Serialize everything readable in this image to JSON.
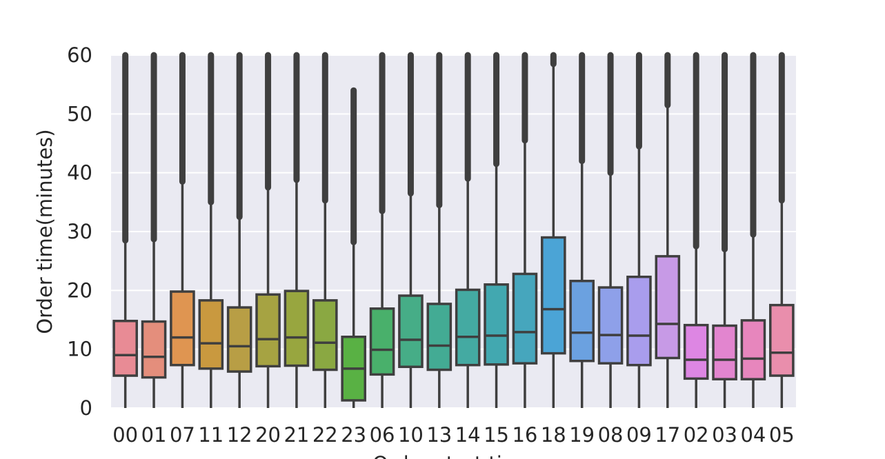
{
  "chart_data": {
    "type": "box",
    "xlabel": "Order start time",
    "ylabel": "Order time(minutes)",
    "ylim": [
      0,
      60
    ],
    "yticks": [
      0,
      10,
      20,
      30,
      40,
      50,
      60
    ],
    "grid": true,
    "categories": [
      "00",
      "01",
      "07",
      "11",
      "12",
      "20",
      "21",
      "22",
      "23",
      "06",
      "10",
      "13",
      "14",
      "15",
      "16",
      "18",
      "19",
      "08",
      "09",
      "17",
      "02",
      "03",
      "04",
      "05"
    ],
    "boxes": [
      {
        "q1": 5.5,
        "median": 9.0,
        "q3": 14.8,
        "whisker_low": 0,
        "whisker_high": 28.5,
        "fliers_low": 28.5,
        "fliers_high": 60
      },
      {
        "q1": 5.2,
        "median": 8.7,
        "q3": 14.7,
        "whisker_low": 0,
        "whisker_high": 28.7,
        "fliers_low": 28.7,
        "fliers_high": 60
      },
      {
        "q1": 7.3,
        "median": 12.0,
        "q3": 19.8,
        "whisker_low": 0,
        "whisker_high": 38.5,
        "fliers_low": 38.5,
        "fliers_high": 60
      },
      {
        "q1": 6.7,
        "median": 11.0,
        "q3": 18.3,
        "whisker_low": 0,
        "whisker_high": 35.0,
        "fliers_low": 35.0,
        "fliers_high": 60
      },
      {
        "q1": 6.2,
        "median": 10.5,
        "q3": 17.1,
        "whisker_low": 0,
        "whisker_high": 32.5,
        "fliers_low": 32.5,
        "fliers_high": 60
      },
      {
        "q1": 7.1,
        "median": 11.7,
        "q3": 19.3,
        "whisker_low": 0,
        "whisker_high": 37.5,
        "fliers_low": 37.5,
        "fliers_high": 60
      },
      {
        "q1": 7.2,
        "median": 12.0,
        "q3": 19.9,
        "whisker_low": 0,
        "whisker_high": 38.8,
        "fliers_low": 38.8,
        "fliers_high": 60
      },
      {
        "q1": 6.5,
        "median": 11.1,
        "q3": 18.3,
        "whisker_low": 0,
        "whisker_high": 35.3,
        "fliers_low": 35.3,
        "fliers_high": 60
      },
      {
        "q1": 1.3,
        "median": 6.7,
        "q3": 12.1,
        "whisker_low": 0,
        "whisker_high": 28.2,
        "fliers_low": 28.2,
        "fliers_high": 54.0
      },
      {
        "q1": 5.7,
        "median": 9.9,
        "q3": 16.9,
        "whisker_low": 0,
        "whisker_high": 33.5,
        "fliers_low": 33.5,
        "fliers_high": 60
      },
      {
        "q1": 7.0,
        "median": 11.6,
        "q3": 19.1,
        "whisker_low": 0,
        "whisker_high": 36.5,
        "fliers_low": 36.5,
        "fliers_high": 60
      },
      {
        "q1": 6.5,
        "median": 10.6,
        "q3": 17.7,
        "whisker_low": 0,
        "whisker_high": 34.5,
        "fliers_low": 34.5,
        "fliers_high": 60
      },
      {
        "q1": 7.3,
        "median": 12.1,
        "q3": 20.1,
        "whisker_low": 0,
        "whisker_high": 39.0,
        "fliers_low": 39.0,
        "fliers_high": 60
      },
      {
        "q1": 7.4,
        "median": 12.3,
        "q3": 21.0,
        "whisker_low": 0,
        "whisker_high": 41.5,
        "fliers_low": 41.5,
        "fliers_high": 60
      },
      {
        "q1": 7.6,
        "median": 12.9,
        "q3": 22.8,
        "whisker_low": 0,
        "whisker_high": 45.5,
        "fliers_low": 45.5,
        "fliers_high": 60
      },
      {
        "q1": 9.3,
        "median": 16.8,
        "q3": 29.0,
        "whisker_low": 0,
        "whisker_high": 58.5,
        "fliers_low": 58.5,
        "fliers_high": 60
      },
      {
        "q1": 8.0,
        "median": 12.8,
        "q3": 21.6,
        "whisker_low": 0,
        "whisker_high": 42.0,
        "fliers_low": 42.0,
        "fliers_high": 60
      },
      {
        "q1": 7.6,
        "median": 12.4,
        "q3": 20.5,
        "whisker_low": 0,
        "whisker_high": 40.0,
        "fliers_low": 40.0,
        "fliers_high": 60
      },
      {
        "q1": 7.3,
        "median": 12.3,
        "q3": 22.3,
        "whisker_low": 0,
        "whisker_high": 44.5,
        "fliers_low": 44.5,
        "fliers_high": 60
      },
      {
        "q1": 8.5,
        "median": 14.3,
        "q3": 25.8,
        "whisker_low": 0,
        "whisker_high": 51.5,
        "fliers_low": 51.5,
        "fliers_high": 60
      },
      {
        "q1": 5.0,
        "median": 8.2,
        "q3": 14.1,
        "whisker_low": 0,
        "whisker_high": 27.5,
        "fliers_low": 27.5,
        "fliers_high": 60
      },
      {
        "q1": 4.9,
        "median": 8.2,
        "q3": 14.0,
        "whisker_low": 0,
        "whisker_high": 27.0,
        "fliers_low": 27.0,
        "fliers_high": 60
      },
      {
        "q1": 4.9,
        "median": 8.4,
        "q3": 14.9,
        "whisker_low": 0,
        "whisker_high": 29.5,
        "fliers_low": 29.5,
        "fliers_high": 60
      },
      {
        "q1": 5.5,
        "median": 9.4,
        "q3": 17.5,
        "whisker_low": 0,
        "whisker_high": 35.3,
        "fliers_low": 35.3,
        "fliers_high": 60
      }
    ],
    "colors": [
      "#e88b95",
      "#e48e7c",
      "#df9551",
      "#c9993f",
      "#b89e45",
      "#a6a342",
      "#98a63f",
      "#8aa842",
      "#59b144",
      "#49b06b",
      "#46ad87",
      "#43ab94",
      "#44aaa2",
      "#42a8b0",
      "#46a6bd",
      "#4ba4d6",
      "#6ba1e0",
      "#8ea0e9",
      "#a99ded",
      "#c79ae6",
      "#dd86e3",
      "#e285cf",
      "#e786bd",
      "#e98eac"
    ],
    "plot_bg": "#eaeaf2",
    "grid_color": "#ffffff",
    "line_color": "#3f3f3f"
  }
}
